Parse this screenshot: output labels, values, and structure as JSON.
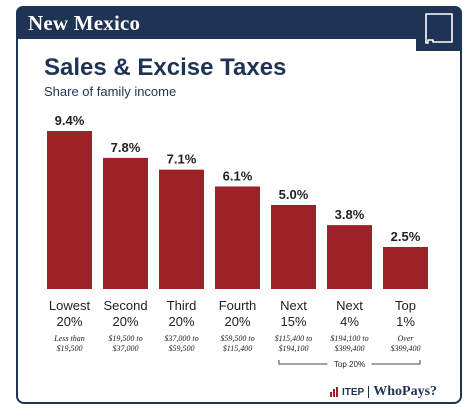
{
  "header": {
    "state": "New Mexico",
    "state_icon": "new-mexico-outline-icon"
  },
  "chart_data": {
    "type": "bar",
    "title": "Sales & Excise Taxes",
    "subtitle": "Share of family income",
    "categories": [
      "Lowest 20%",
      "Second 20%",
      "Third 20%",
      "Fourth 20%",
      "Next 15%",
      "Next 4%",
      "Top 1%"
    ],
    "category_lines": [
      [
        "Lowest",
        "20%"
      ],
      [
        "Second",
        "20%"
      ],
      [
        "Third",
        "20%"
      ],
      [
        "Fourth",
        "20%"
      ],
      [
        "Next",
        "15%"
      ],
      [
        "Next",
        "4%"
      ],
      [
        "Top",
        "1%"
      ]
    ],
    "income_ranges": [
      [
        "Less than",
        "$19,500"
      ],
      [
        "$19,500 to",
        "$37,000"
      ],
      [
        "$37,000 to",
        "$59,500"
      ],
      [
        "$59,500 to",
        "$115,400"
      ],
      [
        "$115,400 to",
        "$194,100"
      ],
      [
        "$194,100 to",
        "$399,400"
      ],
      [
        "Over",
        "$399,400"
      ]
    ],
    "values": [
      9.4,
      7.8,
      7.1,
      6.1,
      5.0,
      3.8,
      2.5
    ],
    "value_labels": [
      "9.4%",
      "7.8%",
      "7.1%",
      "6.1%",
      "5.0%",
      "3.8%",
      "2.5%"
    ],
    "ylim": [
      0,
      9.4
    ],
    "bar_color": "#9c2228",
    "bracket_label": "Top 20%"
  },
  "footer": {
    "itep": "ITEP",
    "whopays": "WhoPays?"
  },
  "colors": {
    "navy": "#1f3354",
    "bar": "#9c2228"
  }
}
